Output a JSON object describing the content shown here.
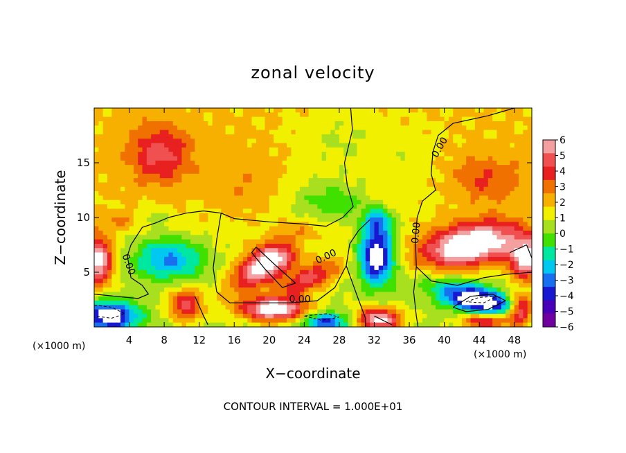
{
  "chart_data": {
    "type": "heatmap",
    "title": "zonal velocity",
    "xlabel": "X−coordinate",
    "ylabel": "Z−coordinate",
    "x_unit_left": "(×1000 m)",
    "x_unit_right": "(×1000 m)",
    "footer": "CONTOUR INTERVAL = 1.000E+01",
    "xlim": [
      0,
      50
    ],
    "ylim": [
      0,
      20
    ],
    "x_ticks": [
      "4",
      "8",
      "12",
      "16",
      "20",
      "24",
      "28",
      "32",
      "36",
      "40",
      "44",
      "48"
    ],
    "x_tick_values": [
      4,
      8,
      12,
      16,
      20,
      24,
      28,
      32,
      36,
      40,
      44,
      48
    ],
    "y_ticks": [
      "5",
      "10",
      "15"
    ],
    "y_tick_values": [
      5,
      10,
      15
    ],
    "colorbar": {
      "min": -6,
      "max": 6,
      "labels": [
        "6",
        "5",
        "4",
        "3",
        "2",
        "1",
        "0",
        "−1",
        "−2",
        "−3",
        "−4",
        "−5",
        "−6"
      ],
      "label_values": [
        6,
        5,
        4,
        3,
        2,
        1,
        0,
        -1,
        -2,
        -3,
        -4,
        -5,
        -6
      ],
      "colors": [
        "#f4a0a0",
        "#f05050",
        "#e82020",
        "#f07000",
        "#f8b000",
        "#f0f000",
        "#a8e020",
        "#40e000",
        "#00e8a0",
        "#00c8f0",
        "#1870f0",
        "#1818d0",
        "#4800b8",
        "#7000a0"
      ]
    },
    "contour_labels": [
      {
        "text": "0.00",
        "x": 39.5,
        "y": 16.4,
        "rotate": -60
      },
      {
        "text": "0.00",
        "x": 3.9,
        "y": 5.7,
        "rotate": 70
      },
      {
        "text": "0.00",
        "x": 26.5,
        "y": 6.4,
        "rotate": -25
      },
      {
        "text": "0.00",
        "x": 36.8,
        "y": 8.6,
        "rotate": -85
      },
      {
        "text": "0.00",
        "x": 23.5,
        "y": 2.5,
        "rotate": 0
      }
    ],
    "features": [
      {
        "x": 7.5,
        "y": 15.8,
        "v": 3.4,
        "rx": 3.5,
        "ry": 2.6
      },
      {
        "x": 45,
        "y": 13.5,
        "v": 2.0,
        "rx": 4,
        "ry": 2.2
      },
      {
        "x": 3.5,
        "y": 9.8,
        "v": 1.6,
        "rx": 3,
        "ry": 0.8
      },
      {
        "x": 27,
        "y": 11.5,
        "v": -2.6,
        "rx": 4.5,
        "ry": 2.0
      },
      {
        "x": 32.5,
        "y": 9.6,
        "v": -3.8,
        "rx": 1.8,
        "ry": 1.2
      },
      {
        "x": 22.5,
        "y": 7.5,
        "v": -2.6,
        "rx": 2.5,
        "ry": 1.0
      },
      {
        "x": 8.5,
        "y": 6.2,
        "v": -4.4,
        "rx": 4.2,
        "ry": 2.0
      },
      {
        "x": 20,
        "y": 6.0,
        "v": 7.5,
        "rx": 4.2,
        "ry": 1.6,
        "rot": -28
      },
      {
        "x": 24.5,
        "y": 4.4,
        "v": 4.5,
        "rx": 3.5,
        "ry": 1.2,
        "rot": -18
      },
      {
        "x": 32.3,
        "y": 6.5,
        "v": -7.8,
        "rx": 2.0,
        "ry": 2.5
      },
      {
        "x": 43,
        "y": 7.5,
        "v": 7.8,
        "rx": 5.5,
        "ry": 1.9,
        "rot": -8
      },
      {
        "x": 49.5,
        "y": 6.2,
        "v": 6.5,
        "rx": 2.0,
        "ry": 1.8
      },
      {
        "x": 0.5,
        "y": 6.0,
        "v": 6.5,
        "rx": 1.6,
        "ry": 2.2
      },
      {
        "x": 1.8,
        "y": 1.0,
        "v": -7.0,
        "rx": 3.2,
        "ry": 1.3
      },
      {
        "x": 10.5,
        "y": 2.0,
        "v": 4.5,
        "rx": 2.0,
        "ry": 1.6
      },
      {
        "x": 20.5,
        "y": 1.6,
        "v": 7.5,
        "rx": 3.8,
        "ry": 1.1
      },
      {
        "x": 26.5,
        "y": 0.5,
        "v": -5.0,
        "rx": 2.8,
        "ry": 0.8
      },
      {
        "x": 32.5,
        "y": 0.7,
        "v": 7.0,
        "rx": 2.6,
        "ry": 1.0
      },
      {
        "x": 44,
        "y": 2.4,
        "v": -7.5,
        "rx": 5.0,
        "ry": 1.3,
        "rot": 12
      },
      {
        "x": 45,
        "y": 0.6,
        "v": 5.5,
        "rx": 3.0,
        "ry": 0.8
      },
      {
        "x": 48.7,
        "y": 1.5,
        "v": 7.0,
        "rx": 1.5,
        "ry": 1.4
      },
      {
        "x": 6.5,
        "y": 10.0,
        "v": -1.6,
        "rx": 2.2,
        "ry": 0.8
      },
      {
        "x": 17,
        "y": 13.0,
        "v": 0.8,
        "rx": 4,
        "ry": 3
      },
      {
        "x": 36,
        "y": 15,
        "v": -0.8,
        "rx": 3.5,
        "ry": 3.5
      },
      {
        "x": 28,
        "y": 17,
        "v": -1.2,
        "rx": 5,
        "ry": 3
      }
    ]
  }
}
